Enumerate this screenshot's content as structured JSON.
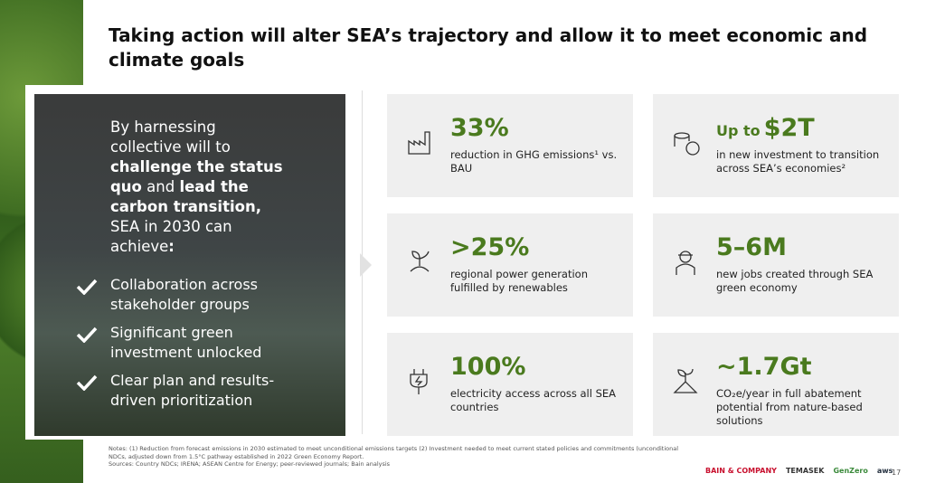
{
  "header": {
    "title": "Taking action will alter SEA’s trajectory and allow it to meet economic and climate goals"
  },
  "panel": {
    "intro": [
      {
        "text": "By harnessing collective will to "
      },
      {
        "text": "challenge the status quo",
        "bold": true
      },
      {
        "text": " and "
      },
      {
        "text": "lead the carbon transition,",
        "bold": true
      },
      {
        "text": " SEA in 2030 can achieve"
      },
      {
        "text": ":",
        "bold": true
      }
    ],
    "checks": [
      "Collaboration across stakeholder groups",
      "Significant green investment unlocked",
      "Clear plan and results-driven prioritization"
    ]
  },
  "cards": [
    {
      "stat": "33%",
      "desc": "reduction in GHG emissions¹ vs. BAU"
    },
    {
      "prefix": "Up to",
      "stat": "$2T",
      "desc": "in new investment to transition across SEA’s economies²"
    },
    {
      "stat": ">25%",
      "desc": "regional power generation fulfilled by renewables"
    },
    {
      "stat": "5–6M",
      "desc": "new jobs created through SEA green economy"
    },
    {
      "stat": "100%",
      "desc": "electricity access across all SEA countries"
    },
    {
      "stat": "~1.7Gt",
      "desc": "CO₂e/year in full abatement potential from nature-based solutions"
    }
  ],
  "footer": {
    "notes": "Notes: (1) Reduction from forecast emissions in 2030 estimated to meet unconditional emissions targets (2) Investment needed to meet current stated policies and commitments (unconditional NDCs, adjusted down from 1.5°C pathway established in 2022 Green Economy Report.",
    "sources": "Sources: Country NDCs; IRENA; ASEAN Centre for Energy; peer-reviewed journals; Bain analysis",
    "logos": [
      "BAIN & COMPANY",
      "TEMASEK",
      "GenZero",
      "aws"
    ],
    "page": "17"
  }
}
